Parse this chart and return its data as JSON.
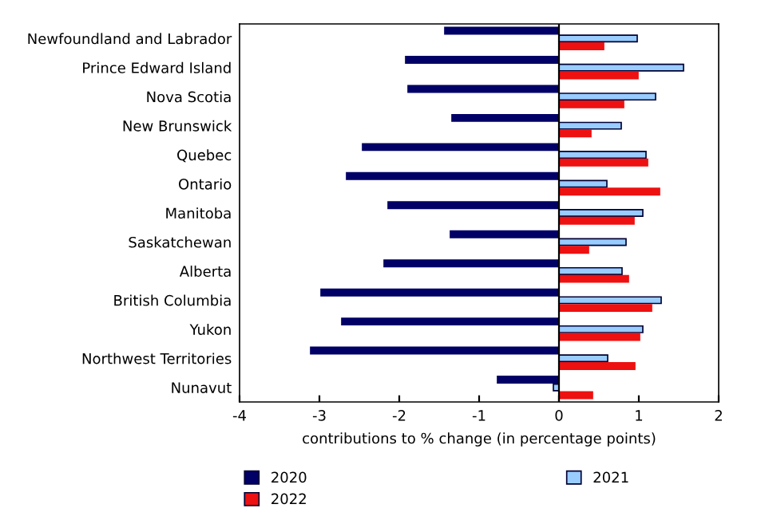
{
  "chart_data": {
    "type": "bar",
    "orientation": "horizontal",
    "xlabel": "contributions to % change (in percentage points)",
    "categories": [
      "Newfoundland and Labrador",
      "Prince Edward Island",
      "Nova Scotia",
      "New Brunswick",
      "Quebec",
      "Ontario",
      "Manitoba",
      "Saskatchewan",
      "Alberta",
      "British Columbia",
      "Yukon",
      "Northwest Territories",
      "Nunavut"
    ],
    "series": [
      {
        "name": "2020",
        "color": "#000066",
        "values": [
          -1.43,
          -1.92,
          -1.89,
          -1.34,
          -2.46,
          -2.66,
          -2.14,
          -1.36,
          -2.19,
          -2.98,
          -2.72,
          -3.11,
          -0.77
        ]
      },
      {
        "name": "2021",
        "color": "#99ccff",
        "values": [
          0.98,
          1.56,
          1.21,
          0.78,
          1.09,
          0.6,
          1.05,
          0.84,
          0.79,
          1.28,
          1.05,
          0.61,
          -0.07
        ]
      },
      {
        "name": "2022",
        "color": "#ee1111",
        "values": [
          0.56,
          0.99,
          0.81,
          0.4,
          1.11,
          1.26,
          0.94,
          0.37,
          0.87,
          1.16,
          1.01,
          0.95,
          0.42
        ]
      }
    ],
    "xlim": [
      -4,
      2
    ],
    "xticks": [
      -4,
      -3,
      -2,
      -1,
      0,
      1,
      2
    ],
    "legend": "bottom"
  }
}
